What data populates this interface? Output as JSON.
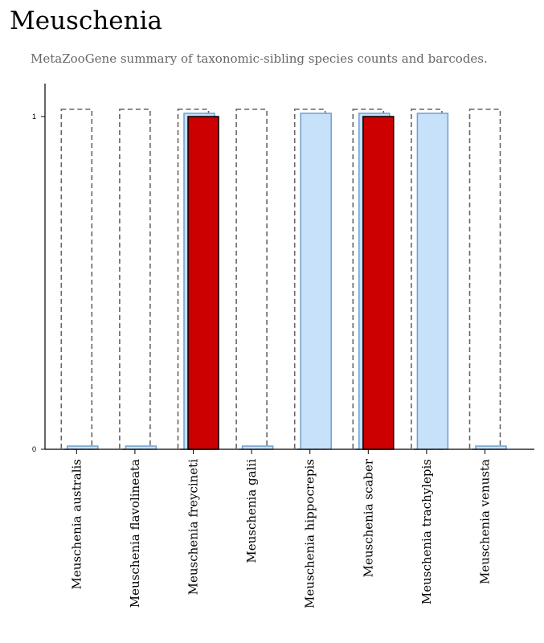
{
  "title": "Meuschenia",
  "subtitle": "MetaZooGene summary of taxonomic-sibling species counts and barcodes.",
  "colors": {
    "expected_outline": "#666666",
    "light_fill": "#c6e1f9",
    "light_stroke": "#6f9fd0",
    "dark_fill": "#cc0000",
    "dark_stroke": "#000000",
    "axis": "#000000"
  },
  "chart_data": {
    "type": "bar",
    "title": "Meuschenia",
    "subtitle": "MetaZooGene summary of taxonomic-sibling species counts and barcodes.",
    "categories": [
      "Meuschenia australis",
      "Meuschenia flavolineata",
      "Meuschenia freycineti",
      "Meuschenia galii",
      "Meuschenia hippocrepis",
      "Meuschenia scaber",
      "Meuschenia trachylepis",
      "Meuschenia venusta"
    ],
    "yticks": [
      "0",
      "1"
    ],
    "ylim": [
      0,
      1
    ],
    "series": [
      {
        "style": "dashed-outline",
        "values": [
          1,
          1,
          1,
          1,
          1,
          1,
          1,
          1
        ]
      },
      {
        "style": "light-blue",
        "values": [
          0,
          0,
          1,
          0,
          1,
          1,
          1,
          0
        ]
      },
      {
        "style": "dark-red",
        "values": [
          0,
          0,
          1,
          0,
          0,
          1,
          0,
          0
        ]
      }
    ],
    "grid": false,
    "legend": "none"
  }
}
